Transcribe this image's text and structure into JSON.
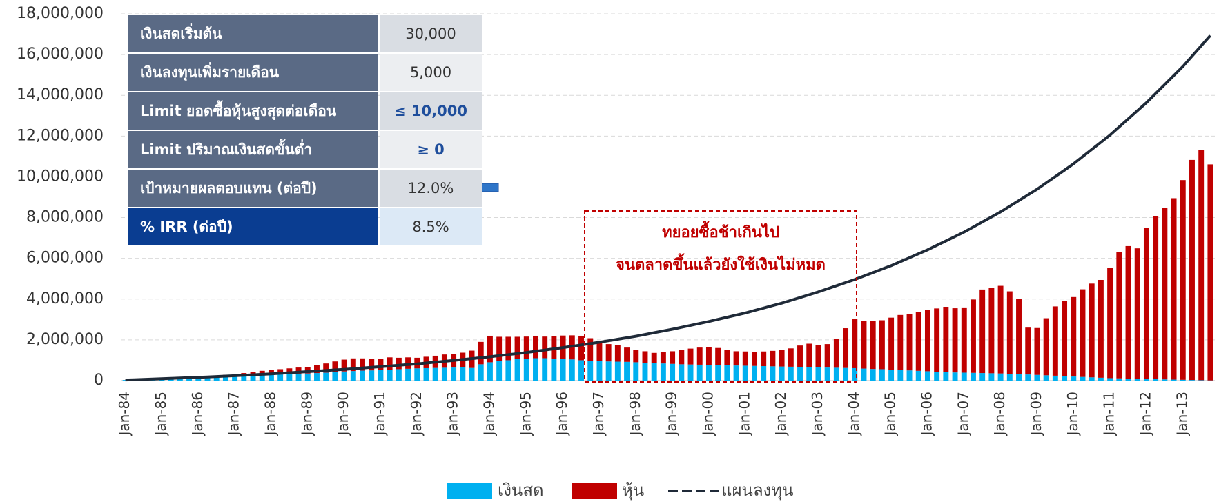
{
  "chart_data": {
    "type": "stacked_bar_line",
    "categories": [
      "Jan-84",
      null,
      null,
      null,
      "Jan-85",
      null,
      null,
      null,
      "Jan-86",
      null,
      null,
      null,
      "Jan-87",
      null,
      null,
      null,
      "Jan-88",
      null,
      null,
      null,
      "Jan-89",
      null,
      null,
      null,
      "Jan-90",
      null,
      null,
      null,
      "Jan-91",
      null,
      null,
      null,
      "Jan-92",
      null,
      null,
      null,
      "Jan-93",
      null,
      null,
      null,
      "Jan-94",
      null,
      null,
      null,
      "Jan-95",
      null,
      null,
      null,
      "Jan-96",
      null,
      null,
      null,
      "Jan-97",
      null,
      null,
      null,
      "Jan-98",
      null,
      null,
      null,
      "Jan-99",
      null,
      null,
      null,
      "Jan-00",
      null,
      null,
      null,
      "Jan-01",
      null,
      null,
      null,
      "Jan-02",
      null,
      null,
      null,
      "Jan-03",
      null,
      null,
      null,
      "Jan-04",
      null,
      null,
      null,
      "Jan-05",
      null,
      null,
      null,
      "Jan-06",
      null,
      null,
      null,
      "Jan-07",
      null,
      null,
      null,
      "Jan-08",
      null,
      null,
      null,
      "Jan-09",
      null,
      null,
      null,
      "Jan-10",
      null,
      null,
      null,
      "Jan-11",
      null,
      null,
      null,
      "Jan-12",
      null,
      null,
      null,
      "Jan-13",
      null,
      null,
      null
    ],
    "series": [
      {
        "name": "เงินสด",
        "color": "#00b0f0",
        "kind": "bar",
        "values": [
          30000,
          40000,
          55000,
          70000,
          80000,
          95000,
          110000,
          120000,
          130000,
          150000,
          170000,
          190000,
          200000,
          220000,
          240000,
          260000,
          280000,
          300000,
          320000,
          340000,
          350000,
          370000,
          390000,
          420000,
          450000,
          470000,
          490000,
          500000,
          520000,
          540000,
          560000,
          580000,
          600000,
          610000,
          620000,
          630000,
          640000,
          650000,
          620000,
          800000,
          900000,
          950000,
          1000000,
          1050000,
          1080000,
          1100000,
          1100000,
          1080000,
          1060000,
          1040000,
          1000000,
          980000,
          950000,
          940000,
          930000,
          920000,
          900000,
          880000,
          860000,
          840000,
          820000,
          800000,
          790000,
          780000,
          770000,
          760000,
          750000,
          740000,
          730000,
          720000,
          710000,
          700000,
          690000,
          680000,
          670000,
          660000,
          650000,
          640000,
          630000,
          620000,
          610000,
          590000,
          570000,
          560000,
          540000,
          520000,
          500000,
          480000,
          460000,
          440000,
          420000,
          400000,
          390000,
          380000,
          370000,
          360000,
          350000,
          330000,
          310000,
          300000,
          280000,
          260000,
          240000,
          220000,
          200000,
          180000,
          160000,
          140000,
          120000,
          110000,
          100000,
          90000,
          80000,
          70000,
          60000,
          50000,
          40000,
          30000,
          20000,
          10000
        ]
      },
      {
        "name": "หุ้น",
        "color": "#c00000",
        "kind": "bar",
        "values": [
          0,
          5000,
          5000,
          10000,
          10000,
          15000,
          20000,
          25000,
          30000,
          50000,
          70000,
          90000,
          100000,
          150000,
          200000,
          220000,
          230000,
          260000,
          280000,
          300000,
          320000,
          380000,
          450000,
          520000,
          580000,
          620000,
          600000,
          550000,
          560000,
          600000,
          560000,
          560000,
          520000,
          560000,
          600000,
          650000,
          650000,
          720000,
          850000,
          1100000,
          1300000,
          1200000,
          1150000,
          1100000,
          1080000,
          1100000,
          1060000,
          1100000,
          1150000,
          1180000,
          1200000,
          1100000,
          900000,
          850000,
          820000,
          700000,
          620000,
          560000,
          500000,
          580000,
          620000,
          700000,
          780000,
          840000,
          880000,
          840000,
          760000,
          700000,
          700000,
          680000,
          720000,
          760000,
          820000,
          900000,
          1050000,
          1150000,
          1100000,
          1150000,
          1400000,
          1950000,
          2400000,
          2350000,
          2350000,
          2400000,
          2550000,
          2700000,
          2750000,
          2900000,
          3000000,
          3100000,
          3200000,
          3150000,
          3200000,
          3600000,
          4100000,
          4200000,
          4300000,
          4050000,
          3700000,
          2300000,
          2300000,
          2800000,
          3400000,
          3700000,
          3900000,
          4300000,
          4600000,
          4800000,
          5400000,
          6200000,
          6500000,
          6400000,
          7400000,
          8000000,
          8400000,
          8900000,
          9800000,
          10800000,
          11300000,
          10600000
        ]
      },
      {
        "name": "แผนลงทุน",
        "color": "#1f2a38",
        "kind": "line",
        "values": [
          30000,
          45000,
          60000,
          75000,
          90000,
          108000,
          125000,
          143000,
          160000,
          180000,
          200000,
          220000,
          240000,
          263000,
          285000,
          308000,
          330000,
          358000,
          385000,
          413000,
          440000,
          468000,
          495000,
          523000,
          550000,
          583000,
          615000,
          648000,
          680000,
          715000,
          750000,
          785000,
          820000,
          863000,
          905000,
          948000,
          990000,
          1035000,
          1080000,
          1125000,
          1170000,
          1223000,
          1275000,
          1328000,
          1380000,
          1440000,
          1500000,
          1560000,
          1620000,
          1685000,
          1750000,
          1815000,
          1880000,
          1955000,
          2030000,
          2105000,
          2180000,
          2265000,
          2350000,
          2435000,
          2520000,
          2615000,
          2710000,
          2805000,
          2900000,
          3005000,
          3110000,
          3215000,
          3320000,
          3440000,
          3560000,
          3680000,
          3800000,
          3938000,
          4075000,
          4213000,
          4350000,
          4503000,
          4655000,
          4808000,
          4960000,
          5130000,
          5300000,
          5470000,
          5640000,
          5835000,
          6030000,
          6225000,
          6420000,
          6638000,
          6855000,
          7073000,
          7290000,
          7538000,
          7785000,
          8033000,
          8280000,
          8558000,
          8835000,
          9113000,
          9390000,
          9703000,
          10015000,
          10328000,
          10640000,
          10993000,
          11345000,
          11698000,
          12050000,
          12448000,
          12845000,
          13243000,
          13640000,
          14085000,
          14530000,
          14975000,
          15420000,
          15925000,
          16430000,
          16935000
        ]
      }
    ],
    "ylim": [
      0,
      18000000
    ],
    "yticks": [
      0,
      {
        "value": 2000000,
        "label": "2,000,000"
      },
      {
        "value": 4000000,
        "label": "4,000,000"
      },
      {
        "value": 6000000,
        "label": "6,000,000"
      },
      {
        "value": 8000000,
        "label": "8,000,000"
      },
      {
        "value": 10000000,
        "label": "10,000,000"
      },
      {
        "value": 12000000,
        "label": "12,000,000"
      },
      {
        "value": 14000000,
        "label": "14,000,000"
      },
      {
        "value": 16000000,
        "label": "16,000,000"
      },
      {
        "value": 18000000,
        "label": "18,000,000"
      }
    ],
    "grid": true,
    "annotations": [
      "ทยอยซื้อช้าเกินไป",
      "จนตลาดขึ้นแล้วยังใช้เงินไม่หมด"
    ]
  },
  "table": {
    "rows": [
      {
        "label": "เงินสดเริ่มต้น",
        "value": "30,000"
      },
      {
        "label": "เงินลงทุนเพิ่มรายเดือน",
        "value": "5,000"
      },
      {
        "label": "Limit ยอดซื้อหุ้นสูงสุดต่อเดือน",
        "value": "≤ 10,000"
      },
      {
        "label": "Limit ปริมาณเงินสดขั้นต่ำ",
        "value": "≥ 0"
      },
      {
        "label": "เป้าหมายผลตอบแทน (ต่อปี)",
        "value": "12.0%"
      },
      {
        "label": "% IRR (ต่อปี)",
        "value": "8.5%"
      }
    ]
  }
}
